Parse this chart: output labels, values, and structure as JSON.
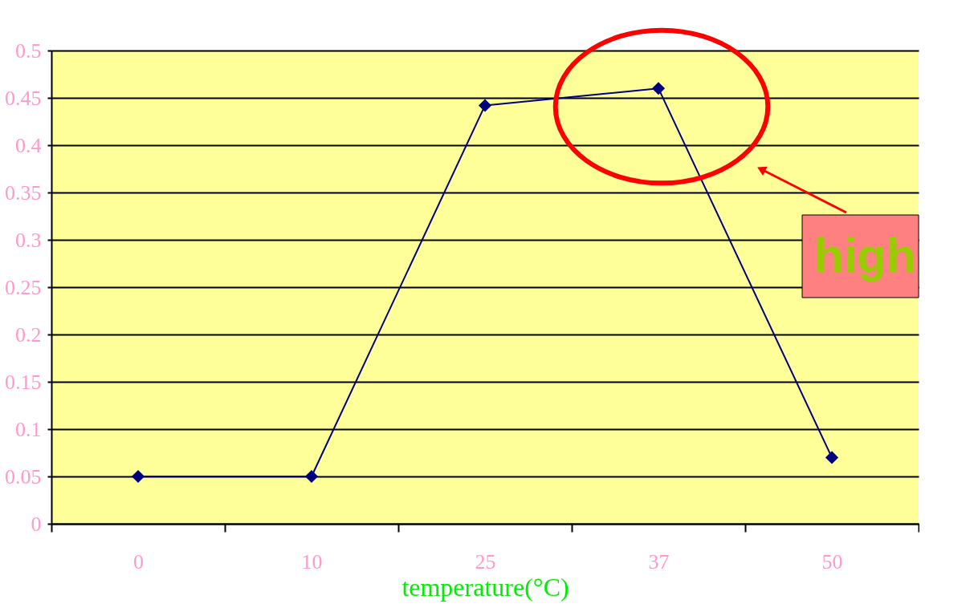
{
  "chart_data": {
    "type": "line",
    "xlabel": "temperature(°C)",
    "categories": [
      "0",
      "10",
      "25",
      "37",
      "50"
    ],
    "series": [
      {
        "color": "#000080",
        "values": [
          0.05,
          0.05,
          0.442,
          0.46,
          0.07
        ]
      }
    ],
    "ylim": [
      0,
      0.5
    ],
    "yticks": [
      0,
      0.05,
      0.1,
      0.15,
      0.2,
      0.25,
      0.3,
      0.35,
      0.4,
      0.45,
      0.5
    ],
    "grid": "y",
    "marker": "diamond",
    "line_style": "solid",
    "annotations": [
      "high"
    ]
  }
}
